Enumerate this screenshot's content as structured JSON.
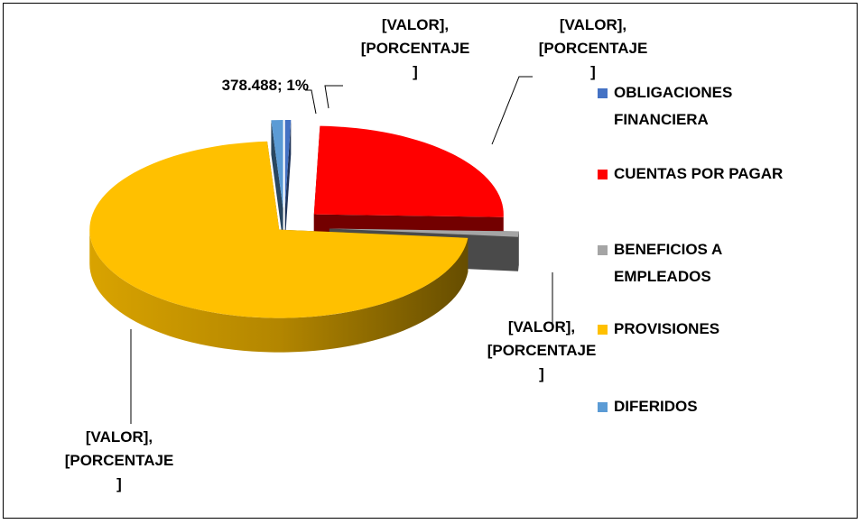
{
  "chart_data": {
    "type": "pie",
    "categories": [
      "OBLIGACIONES FINANCIERA",
      "CUENTAS POR PAGAR",
      "BENEFICIOS A EMPLEADOS",
      "PROVISIONES",
      "DIFERIDOS"
    ],
    "values": [
      0.5,
      25,
      1,
      72.5,
      1
    ],
    "value_labels": [
      "[VALOR], [PORCENTAJE]",
      "[VALOR], [PORCENTAJE]",
      "[VALOR], [PORCENTAJE]",
      "[VALOR], [PORCENTAJE]",
      "378.488; 1%"
    ],
    "colors": [
      "#4472c4",
      "#ff0000",
      "#a5a5a5",
      "#ffc000",
      "#5b9bd5"
    ],
    "legend": "right"
  }
}
